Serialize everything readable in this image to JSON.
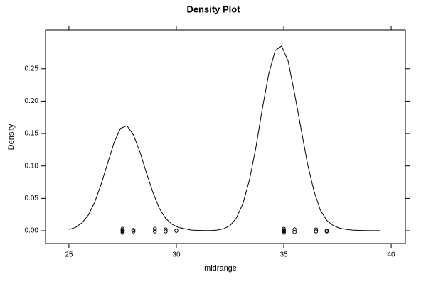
{
  "chart_data": {
    "type": "line",
    "title": "Density Plot",
    "xlabel": "midrange",
    "ylabel": "Density",
    "color": "#000000",
    "x": [
      25,
      25.3,
      25.6,
      25.9,
      26.2,
      26.5,
      26.8,
      27.1,
      27.4,
      27.7,
      28.0,
      28.3,
      28.6,
      28.9,
      29.2,
      29.5,
      29.8,
      30.1,
      30.4,
      30.7,
      31.0,
      31.3,
      31.6,
      31.9,
      32.2,
      32.5,
      32.8,
      33.1,
      33.4,
      33.7,
      34.0,
      34.3,
      34.6,
      34.9,
      35.2,
      35.5,
      35.8,
      36.1,
      36.4,
      36.7,
      37.0,
      37.3,
      37.6,
      37.9,
      38.2,
      38.5,
      38.8,
      39.1,
      39.5
    ],
    "values": [
      0.002,
      0.005,
      0.012,
      0.024,
      0.044,
      0.072,
      0.104,
      0.136,
      0.158,
      0.162,
      0.148,
      0.122,
      0.09,
      0.06,
      0.035,
      0.019,
      0.01,
      0.005,
      0.003,
      0.001,
      0.0005,
      0.0003,
      0.0003,
      0.001,
      0.003,
      0.008,
      0.02,
      0.042,
      0.078,
      0.128,
      0.188,
      0.242,
      0.278,
      0.285,
      0.262,
      0.212,
      0.158,
      0.104,
      0.062,
      0.032,
      0.016,
      0.008,
      0.004,
      0.002,
      0.001,
      0.0005,
      0.0003,
      0.0002,
      0.0002
    ],
    "rug": {
      "x": [
        27.5,
        27.5,
        27.5,
        27.5,
        27.5,
        28,
        28,
        29,
        29,
        29.5,
        29.5,
        30,
        35,
        35,
        35,
        35,
        35,
        35.5,
        35.5,
        36.5,
        36.5,
        37,
        37
      ],
      "values": [
        0.003,
        0.001,
        0,
        -0.001,
        -0.003,
        0.001,
        -0.001,
        0.003,
        -0.001,
        0.002,
        -0.001,
        0,
        0.003,
        0.001,
        0,
        -0.001,
        -0.003,
        0.002,
        -0.002,
        0.002,
        -0.001,
        0,
        -0.001
      ]
    },
    "xlim": [
      23.91,
      40.66
    ],
    "ylim": [
      -0.0197,
      0.31
    ],
    "xticks": [
      25,
      30,
      35,
      40
    ],
    "yticks": [
      {
        "value": 0,
        "label": "0.00"
      },
      {
        "value": 0.05,
        "label": "0.05"
      },
      {
        "value": 0.1,
        "label": "0.10"
      },
      {
        "value": 0.15,
        "label": "0.15"
      },
      {
        "value": 0.2,
        "label": "0.20"
      },
      {
        "value": 0.25,
        "label": "0.25"
      }
    ]
  }
}
